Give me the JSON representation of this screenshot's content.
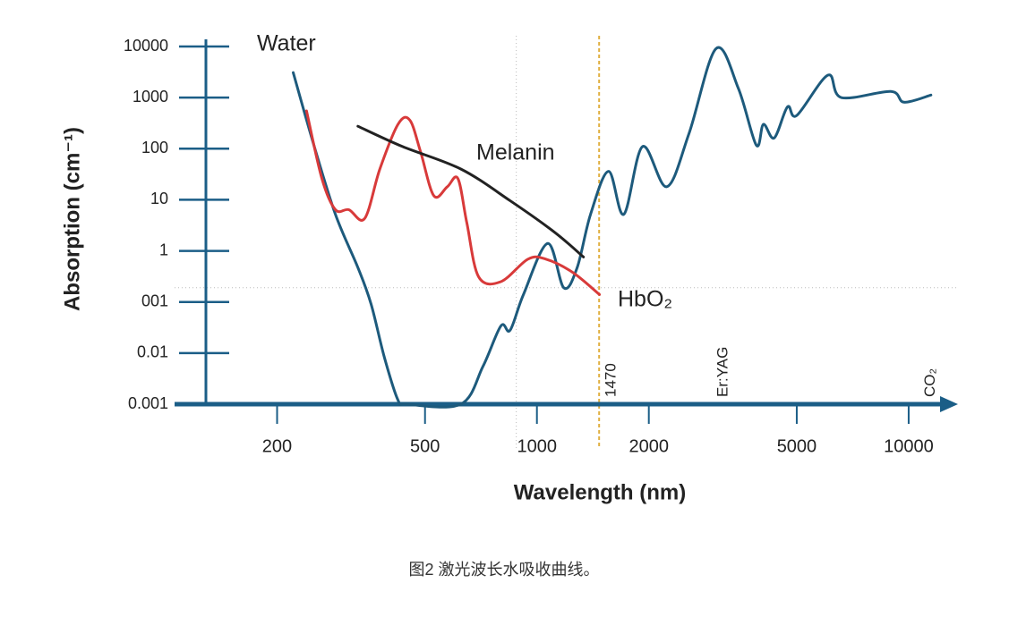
{
  "chart_data": {
    "type": "line",
    "xlabel": "Wavelength (nm)",
    "ylabel": "Absorption (cm⁻¹)",
    "caption": "图2 激光波长水吸收曲线。",
    "log_x": true,
    "log_y": true,
    "xlim": [
      106,
      13200
    ],
    "ylim": [
      0.001,
      10000
    ],
    "xticks": [
      200,
      500,
      1000,
      2000,
      5000,
      10000
    ],
    "yticks": [
      10000,
      1000,
      100,
      10,
      1,
      {
        "value": 0.1,
        "label": "001"
      },
      0.01,
      0.001
    ],
    "series": [
      {
        "name": "Water",
        "color": "#1d5a7c",
        "x": [
          221,
          250,
          287,
          330,
          358,
          389,
          423,
          447,
          624,
          716,
          800,
          847,
          920,
          1069,
          1181,
          1283,
          1394,
          1559,
          1713,
          1924,
          2235,
          2566,
          3033,
          3484,
          3892,
          4067,
          4348,
          4722,
          5000,
          6067,
          6592,
          8951,
          9723,
          11480
        ],
        "values": [
          3090,
          132,
          5.2,
          0.47,
          0.091,
          0.0081,
          0.0012,
          0.001,
          0.001,
          0.0055,
          0.034,
          0.028,
          0.14,
          1.4,
          0.19,
          0.47,
          5.2,
          36,
          5.2,
          110,
          18,
          200,
          9100,
          1500,
          117,
          300,
          162,
          660,
          447,
          2750,
          1000,
          1320,
          813,
          1120
        ]
      },
      {
        "name": "HbO₂",
        "color": "#d83a3a",
        "x": [
          240,
          264,
          287,
          312,
          344,
          378,
          423,
          455,
          486,
          528,
          574,
          613,
          648,
          697,
          800,
          946,
          1057,
          1248,
          1473
        ],
        "values": [
          550,
          26,
          6.4,
          6.4,
          4.3,
          40,
          300,
          363,
          89,
          12,
          18,
          26,
          3.5,
          0.31,
          0.25,
          0.69,
          0.69,
          0.38,
          0.14
        ]
      },
      {
        "name": "Melanin",
        "color": "#222222",
        "x": [
          330,
          435,
          624,
          847,
          1117,
          1334
        ],
        "values": [
          275,
          110,
          40,
          9.6,
          2.3,
          0.76
        ]
      }
    ],
    "guides": [
      {
        "axis": "x",
        "value": 880,
        "color": "#bbbbbb"
      },
      {
        "axis": "y",
        "value": 0.19,
        "color": "#bbbbbb"
      },
      {
        "axis": "x",
        "value": 1470,
        "color": "#e0b040"
      }
    ],
    "annotations": [
      {
        "text": "1470",
        "x": 1470
      },
      {
        "text": "Er:YAG",
        "x": 2940
      },
      {
        "text": "CO₂",
        "x": 10600
      }
    ],
    "axis_color": "#1b5e87"
  }
}
